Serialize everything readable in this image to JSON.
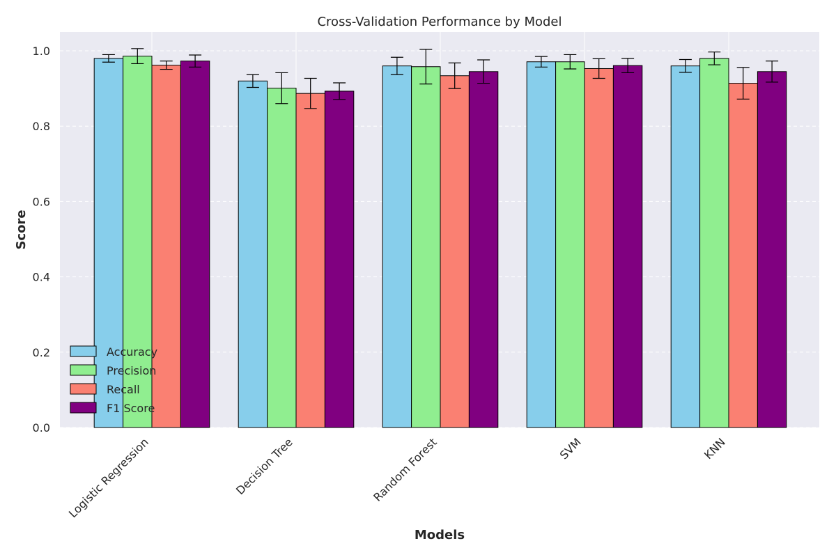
{
  "chart_data": {
    "type": "bar",
    "title": "Cross-Validation Performance by Model",
    "xlabel": "Models",
    "ylabel": "Score",
    "ylim": [
      0,
      1.05
    ],
    "yticks": [
      "0.0",
      "0.2",
      "0.4",
      "0.6",
      "0.8",
      "1.0"
    ],
    "categories": [
      "Logistic Regression",
      "Decision Tree",
      "Random Forest",
      "SVM",
      "KNN"
    ],
    "series": [
      {
        "name": "Accuracy",
        "color": "#87ceeb",
        "values": [
          0.98,
          0.92,
          0.96,
          0.971,
          0.96
        ],
        "errors": [
          0.01,
          0.017,
          0.023,
          0.014,
          0.017
        ]
      },
      {
        "name": "Precision",
        "color": "#90ee90",
        "values": [
          0.986,
          0.901,
          0.958,
          0.971,
          0.98
        ],
        "errors": [
          0.02,
          0.041,
          0.046,
          0.019,
          0.017
        ]
      },
      {
        "name": "Recall",
        "color": "#fa8072",
        "values": [
          0.962,
          0.887,
          0.934,
          0.953,
          0.914
        ],
        "errors": [
          0.011,
          0.04,
          0.034,
          0.026,
          0.042
        ]
      },
      {
        "name": "F1 Score",
        "color": "#800080",
        "values": [
          0.973,
          0.893,
          0.945,
          0.961,
          0.945
        ],
        "errors": [
          0.016,
          0.022,
          0.031,
          0.019,
          0.028
        ]
      }
    ],
    "error_bars": true,
    "grid": true,
    "legend_position": "lower-left"
  }
}
